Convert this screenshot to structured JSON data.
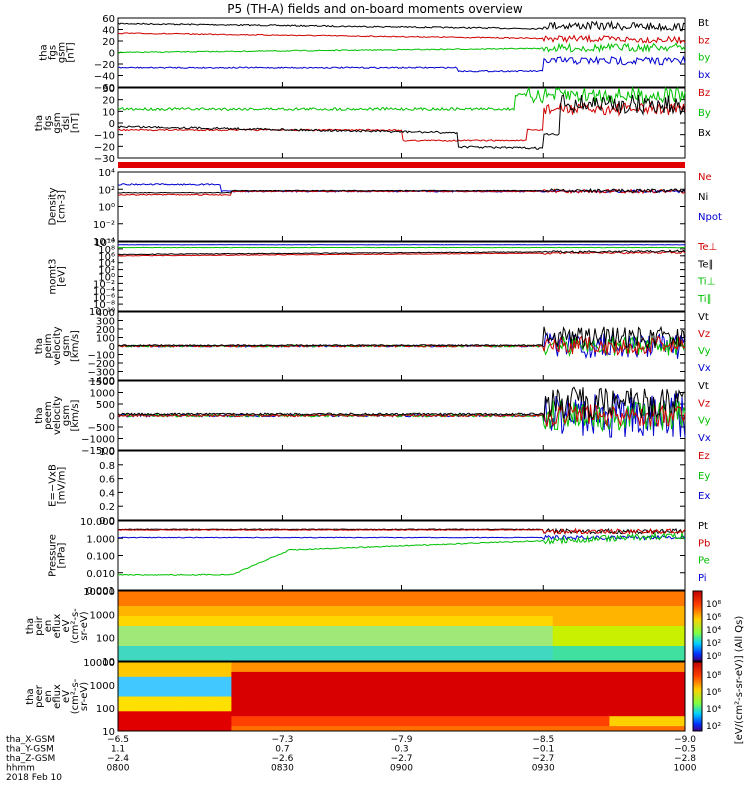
{
  "title": "P5 (TH-A) fields and on-board moments overview",
  "colors": {
    "black": "#000000",
    "red": "#d00000",
    "green": "#00c000",
    "blue": "#0000d0"
  },
  "chart_data": [
    {
      "type": "line",
      "ylabel": [
        "tha",
        "fgs",
        "gsm",
        "[nT]"
      ],
      "yticks": [
        "60",
        "40",
        "20",
        "0",
        "−20",
        "−40",
        "−60"
      ],
      "ylim": [
        -60,
        60
      ],
      "series": [
        {
          "name": "Bt",
          "color": "black"
        },
        {
          "name": "bz",
          "color": "red"
        },
        {
          "name": "by",
          "color": "green"
        },
        {
          "name": "bx",
          "color": "blue"
        }
      ]
    },
    {
      "type": "line",
      "ylabel": [
        "tha",
        "fgs",
        "gsm",
        "dsl",
        "[nT]"
      ],
      "yticks": [
        "30",
        "20",
        "10",
        "0",
        "−10",
        "−20",
        "−30"
      ],
      "ylim": [
        -30,
        30
      ],
      "series": [
        {
          "name": "Bz",
          "color": "red"
        },
        {
          "name": "By",
          "color": "green"
        },
        {
          "name": "Bx",
          "color": "black"
        }
      ]
    },
    {
      "type": "line",
      "ylabel": [
        "Density",
        "[cm-3]"
      ],
      "yticks": [
        "10⁴",
        "10²",
        "10⁰",
        "10⁻²",
        "10⁻⁴"
      ],
      "log": true,
      "series": [
        {
          "name": "Ne",
          "color": "red"
        },
        {
          "name": "Ni",
          "color": "black"
        },
        {
          "name": "Npot",
          "color": "blue"
        }
      ]
    },
    {
      "type": "line",
      "ylabel": [
        "momt3",
        "[eV]"
      ],
      "yticks": [
        "10¹⁰",
        "10⁸",
        "10⁶",
        "10⁴",
        "10²",
        "10⁰",
        "10⁻²",
        "10⁻⁴",
        "10⁻⁶",
        "10⁻⁸",
        "10⁻¹⁰"
      ],
      "log": true,
      "series": [
        {
          "name": "Te⊥",
          "color": "red"
        },
        {
          "name": "Te∥",
          "color": "black"
        },
        {
          "name": "Ti⊥",
          "color": "green"
        },
        {
          "name": "Ti∥",
          "color": "green"
        }
      ]
    },
    {
      "type": "line",
      "ylabel": [
        "tha",
        "peim",
        "velocity",
        "gsm",
        "[km/s]"
      ],
      "yticks": [
        "400",
        "300",
        "200",
        "100",
        "0",
        "−100",
        "−200",
        "−300",
        "−400"
      ],
      "ylim": [
        -400,
        400
      ],
      "series": [
        {
          "name": "Vt",
          "color": "black"
        },
        {
          "name": "Vz",
          "color": "red"
        },
        {
          "name": "Vy",
          "color": "green"
        },
        {
          "name": "Vx",
          "color": "blue"
        }
      ]
    },
    {
      "type": "line",
      "ylabel": [
        "tha",
        "peem",
        "velocity",
        "gsm",
        "[km/s]"
      ],
      "yticks": [
        "1500",
        "1000",
        "500",
        "0",
        "−500",
        "−1000",
        "−1500"
      ],
      "ylim": [
        -1500,
        1500
      ],
      "series": [
        {
          "name": "Vt",
          "color": "black"
        },
        {
          "name": "Vz",
          "color": "red"
        },
        {
          "name": "Vy",
          "color": "green"
        },
        {
          "name": "Vx",
          "color": "blue"
        }
      ]
    },
    {
      "type": "line",
      "ylabel": [
        "E=−VxB",
        "[mV/m]"
      ],
      "yticks": [
        "1.0",
        "0.8",
        "0.6",
        "0.4",
        "0.2",
        "0.0"
      ],
      "ylim": [
        0,
        1
      ],
      "series": [
        {
          "name": "Ez",
          "color": "red"
        },
        {
          "name": "Ey",
          "color": "green"
        },
        {
          "name": "Ex",
          "color": "blue"
        }
      ]
    },
    {
      "type": "line",
      "ylabel": [
        "Pressure",
        "[nPa]"
      ],
      "yticks": [
        "10.000",
        "1.000",
        "0.100",
        "0.010",
        "0.001"
      ],
      "log": true,
      "series": [
        {
          "name": "Pt",
          "color": "black"
        },
        {
          "name": "Pb",
          "color": "red"
        },
        {
          "name": "Pe",
          "color": "green"
        },
        {
          "name": "Pi",
          "color": "blue"
        }
      ]
    },
    {
      "type": "heatmap",
      "ylabel": [
        "tha",
        "peir",
        "en",
        "eflux",
        "eV",
        "(cm²-s-",
        "sr-eV)"
      ],
      "yticks": [
        "10000",
        "1000",
        "100",
        "10"
      ],
      "colorbar_ticks": [
        "10⁸",
        "10⁶",
        "10⁴",
        "10²",
        "10⁰"
      ]
    },
    {
      "type": "heatmap",
      "ylabel": [
        "tha",
        "peer",
        "en",
        "eflux",
        "eV",
        "(cm²-s-",
        "sr-eV)"
      ],
      "yticks": [
        "10000",
        "1000",
        "100",
        "10"
      ],
      "colorbar_ticks": [
        "10⁸",
        "10⁶",
        "10⁴",
        "10²"
      ]
    }
  ],
  "colorbar_label": "[eV/(cm²-s-sr-eV)] (All Qs)",
  "x_axis": {
    "rows": [
      {
        "label": "tha_X-GSM",
        "values": [
          "−6.5",
          "−7.3",
          "−7.9",
          "−8.5",
          "−9.0"
        ]
      },
      {
        "label": "tha_Y-GSM",
        "values": [
          "1.1",
          "0.7",
          "0.3",
          "−0.1",
          "−0.5"
        ]
      },
      {
        "label": "tha_Z-GSM",
        "values": [
          "−2.4",
          "−2.6",
          "−2.7",
          "−2.7",
          "−2.8"
        ]
      },
      {
        "label": "hhmm",
        "values": [
          "0800",
          "0830",
          "0900",
          "0930",
          "1000"
        ]
      }
    ],
    "date": "2018 Feb 10"
  }
}
